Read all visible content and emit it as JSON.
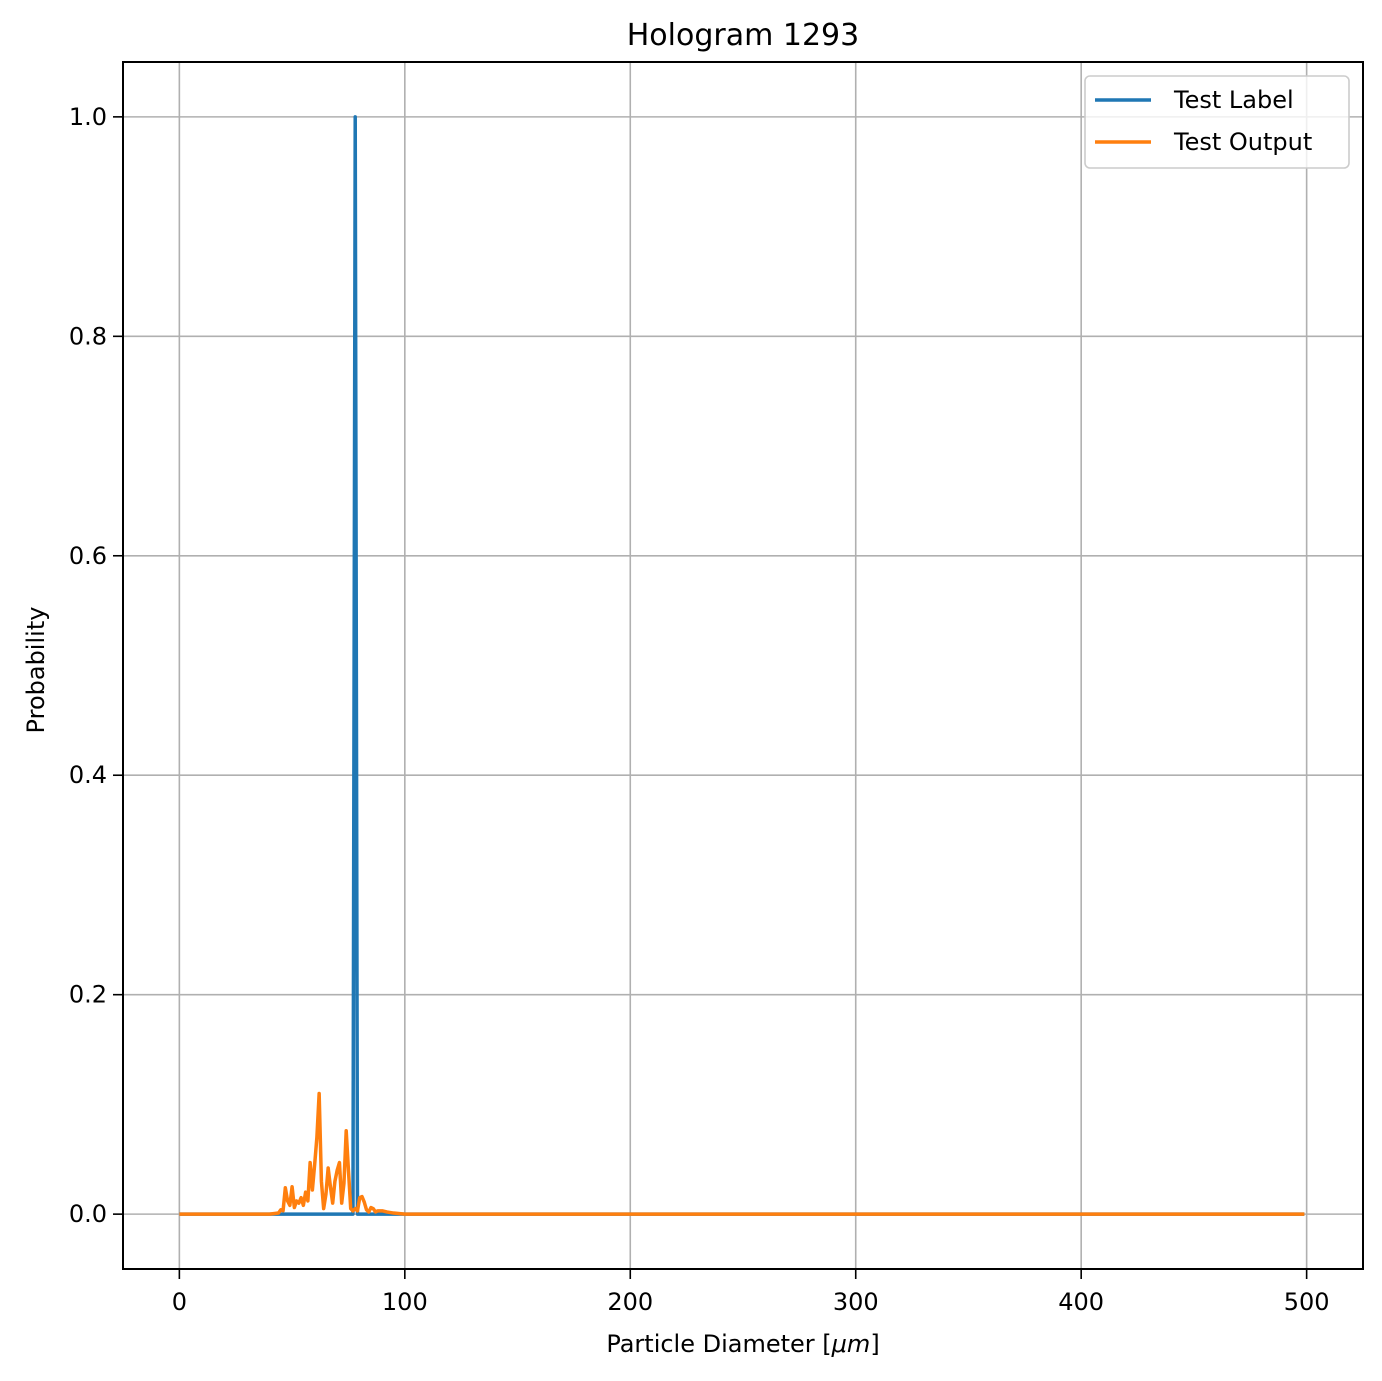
{
  "chart_data": {
    "type": "line",
    "title": "Hologram 1293",
    "xlabel": "Particle Diameter [",
    "xlabel_unit": "μm",
    "xlabel_close": "]",
    "ylabel": "Probability",
    "xlim": [
      -25,
      525
    ],
    "ylim": [
      -0.05,
      1.05
    ],
    "xticks": [
      0,
      100,
      200,
      300,
      400,
      500
    ],
    "xtick_labels": [
      "0",
      "100",
      "200",
      "300",
      "400",
      "500"
    ],
    "yticks": [
      0.0,
      0.2,
      0.4,
      0.6,
      0.8,
      1.0
    ],
    "ytick_labels": [
      "0.0",
      "0.2",
      "0.4",
      "0.6",
      "0.8",
      "1.0"
    ],
    "grid": true,
    "legend_position": "top-right",
    "series": [
      {
        "name": "Test Label",
        "color": "#1f77b4",
        "x": [
          0,
          77,
          78,
          79,
          499
        ],
        "y": [
          0,
          0,
          1.0,
          0,
          0
        ]
      },
      {
        "name": "Test Output",
        "color": "#ff7f0e",
        "x": [
          0,
          40,
          44,
          45,
          46,
          47,
          48,
          49,
          50,
          51,
          52,
          53,
          54,
          55,
          56,
          57,
          58,
          59,
          60,
          61,
          62,
          63,
          64,
          65,
          66,
          67,
          68,
          69,
          70,
          71,
          72,
          73,
          74,
          75,
          76,
          77,
          78,
          79,
          80,
          81,
          82,
          83,
          84,
          85,
          86,
          87,
          88,
          90,
          92,
          95,
          100,
          499
        ],
        "y": [
          0,
          0,
          0.001,
          0.004,
          0.003,
          0.024,
          0.012,
          0.008,
          0.025,
          0.006,
          0.012,
          0.01,
          0.015,
          0.008,
          0.02,
          0.012,
          0.047,
          0.022,
          0.045,
          0.07,
          0.11,
          0.03,
          0.005,
          0.018,
          0.042,
          0.025,
          0.01,
          0.03,
          0.04,
          0.047,
          0.01,
          0.028,
          0.076,
          0.04,
          0.005,
          0.003,
          0.005,
          0.003,
          0.015,
          0.016,
          0.011,
          0.004,
          0.002,
          0.006,
          0.005,
          0.002,
          0.003,
          0.003,
          0.002,
          0.001,
          0,
          0
        ]
      }
    ]
  }
}
